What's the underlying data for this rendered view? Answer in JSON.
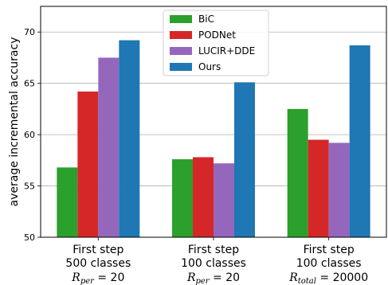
{
  "chart_data": {
    "type": "bar",
    "ylabel": "average incremental accuracy",
    "xlabel": "",
    "title": "",
    "ylim": [
      50,
      72.5
    ],
    "yticks": [
      50,
      55,
      60,
      65,
      70
    ],
    "grid": "y",
    "legend_placement": "top-center",
    "categories": [
      {
        "line1": "First step",
        "line2": "500 classes",
        "line3": "R_per = 20",
        "sym": "R",
        "sub": "per",
        "eq": " = 20"
      },
      {
        "line1": "First step",
        "line2": "100 classes",
        "line3": "R_per = 20",
        "sym": "R",
        "sub": "per",
        "eq": " = 20"
      },
      {
        "line1": "First step",
        "line2": "100 classes",
        "line3": "R_total = 20000",
        "sym": "R",
        "sub": "total",
        "eq": " = 20000"
      }
    ],
    "series": [
      {
        "name": "BiC",
        "color": "#2ca02c",
        "values": [
          56.8,
          57.6,
          62.5
        ]
      },
      {
        "name": "PODNet",
        "color": "#d62728",
        "values": [
          64.2,
          57.8,
          59.5
        ]
      },
      {
        "name": "LUCIR+DDE",
        "color": "#9467bd",
        "values": [
          67.5,
          57.2,
          59.2
        ]
      },
      {
        "name": "Ours",
        "color": "#1f77b4",
        "values": [
          69.2,
          65.1,
          68.7
        ]
      }
    ]
  }
}
